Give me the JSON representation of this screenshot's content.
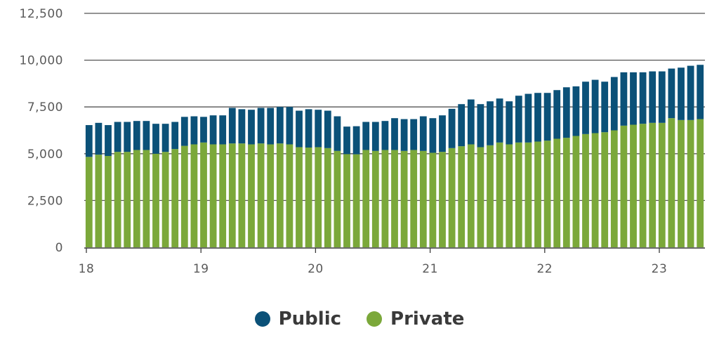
{
  "colors": {
    "public": "#0b5178",
    "private": "#7ba83a",
    "grid": "#555555",
    "axis": "#3a3a3a",
    "text": "#5a5a5a"
  },
  "legend": {
    "public_label": "Public",
    "private_label": "Private"
  },
  "chart_data": {
    "type": "bar",
    "stacked": true,
    "title": "",
    "xlabel": "",
    "ylabel": "",
    "ylim": [
      0,
      12500
    ],
    "y_ticks": [
      "0",
      "2,500",
      "5,000",
      "7,500",
      "10,000",
      "12,500"
    ],
    "y_tick_values": [
      0,
      2500,
      5000,
      7500,
      10000,
      12500
    ],
    "x_tick_labels": [
      "18",
      "19",
      "20",
      "21",
      "22",
      "23"
    ],
    "x_tick_indices": [
      0,
      12,
      24,
      36,
      48,
      60
    ],
    "legend_position": "bottom",
    "grid": "horizontal",
    "series": [
      {
        "name": "Private",
        "values": [
          4830,
          4950,
          4880,
          5100,
          5100,
          5200,
          5200,
          5000,
          5100,
          5250,
          5420,
          5500,
          5600,
          5500,
          5500,
          5550,
          5550,
          5500,
          5550,
          5500,
          5550,
          5500,
          5350,
          5330,
          5350,
          5300,
          5150,
          4980,
          4970,
          5200,
          5150,
          5200,
          5200,
          5150,
          5200,
          5150,
          5050,
          5100,
          5300,
          5400,
          5500,
          5350,
          5450,
          5600,
          5500,
          5600,
          5600,
          5650,
          5700,
          5800,
          5850,
          5950,
          6050,
          6100,
          6150,
          6250,
          6500,
          6550,
          6600,
          6650,
          6650,
          6900,
          6800,
          6800,
          6850
        ]
      },
      {
        "name": "Public",
        "values": [
          1700,
          1700,
          1650,
          1600,
          1600,
          1550,
          1550,
          1600,
          1500,
          1450,
          1550,
          1500,
          1370,
          1550,
          1550,
          1900,
          1830,
          1850,
          1900,
          1950,
          1950,
          2000,
          1950,
          2050,
          2000,
          2000,
          1850,
          1470,
          1500,
          1500,
          1550,
          1550,
          1700,
          1700,
          1650,
          1850,
          1850,
          1950,
          2100,
          2250,
          2400,
          2300,
          2350,
          2350,
          2300,
          2500,
          2600,
          2600,
          2550,
          2600,
          2700,
          2650,
          2800,
          2850,
          2700,
          2850,
          2850,
          2800,
          2750,
          2750,
          2750,
          2650,
          2800,
          2900,
          2900
        ]
      }
    ]
  }
}
